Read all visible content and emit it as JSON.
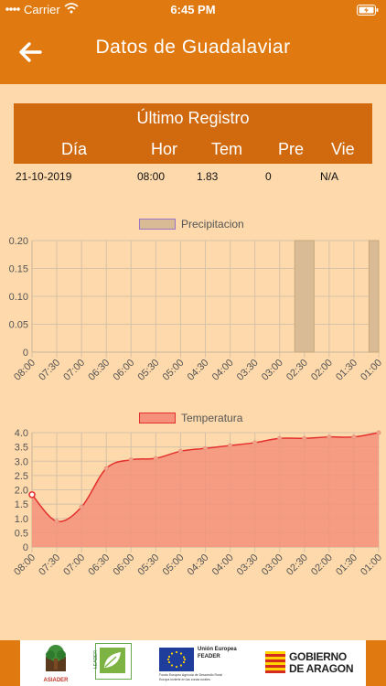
{
  "status_bar": {
    "carrier": "Carrier",
    "time": "6:45 PM"
  },
  "header": {
    "title": "Datos de Guadalaviar"
  },
  "last_record": {
    "title": "Último Registro",
    "columns": [
      "Día",
      "Hor",
      "Tem",
      "Pre",
      "Vie"
    ],
    "row": [
      "21-10-2019",
      "08:00",
      "1.83",
      "0",
      "N/A"
    ]
  },
  "charts": {
    "precip_legend": "Precipitacion",
    "temp_legend": "Temperatura"
  },
  "chart_data": [
    {
      "type": "bar",
      "title": "",
      "legend": [
        "Precipitacion"
      ],
      "categories": [
        "08:00",
        "07:30",
        "07:00",
        "06:30",
        "06:00",
        "05:30",
        "05:00",
        "04:30",
        "04:00",
        "03:30",
        "03:00",
        "02:30",
        "02:00",
        "01:30",
        "01:00"
      ],
      "series": [
        {
          "name": "Precipitacion",
          "values": [
            0,
            0,
            0,
            0,
            0,
            0,
            0,
            0,
            0,
            0,
            0,
            0.2,
            0,
            0,
            0.2
          ]
        }
      ],
      "ylim": [
        0,
        0.2
      ],
      "yticks": [
        "0.20",
        "0.15",
        "0.10",
        "0.05",
        "0"
      ],
      "grid": true,
      "color": "#d9bc95",
      "legend_position": "top-center"
    },
    {
      "type": "area",
      "title": "",
      "legend": [
        "Temperatura"
      ],
      "categories": [
        "08:00",
        "07:30",
        "07:00",
        "06:30",
        "06:00",
        "05:30",
        "05:00",
        "04:30",
        "04:00",
        "03:30",
        "03:00",
        "02:30",
        "02:00",
        "01:30",
        "01:00"
      ],
      "series": [
        {
          "name": "Temperatura",
          "values": [
            1.83,
            0.9,
            1.4,
            2.75,
            3.05,
            3.1,
            3.35,
            3.45,
            3.55,
            3.65,
            3.8,
            3.8,
            3.85,
            3.85,
            4.0
          ]
        }
      ],
      "ylim": [
        0,
        4.0
      ],
      "yticks": [
        "4.0",
        "3.5",
        "3.0",
        "2.5",
        "2.0",
        "1.5",
        "1.0",
        "0.5",
        "0"
      ],
      "grid": true,
      "color": "#f5917a",
      "line_color": "#e4302d",
      "legend_position": "top-center"
    }
  ],
  "footer": {
    "logo1": "ASIADER",
    "logo2": "LEADER",
    "logo3_title": "Unión Europea",
    "logo3_sub": "FEADER",
    "logo3_small1": "Fondo Europeo Agrícola de Desarrollo Rural",
    "logo3_small2": "Europa invierte en las zonas rurales",
    "logo4_line1": "GOBIERNO",
    "logo4_line2": "DE ARAGON"
  }
}
